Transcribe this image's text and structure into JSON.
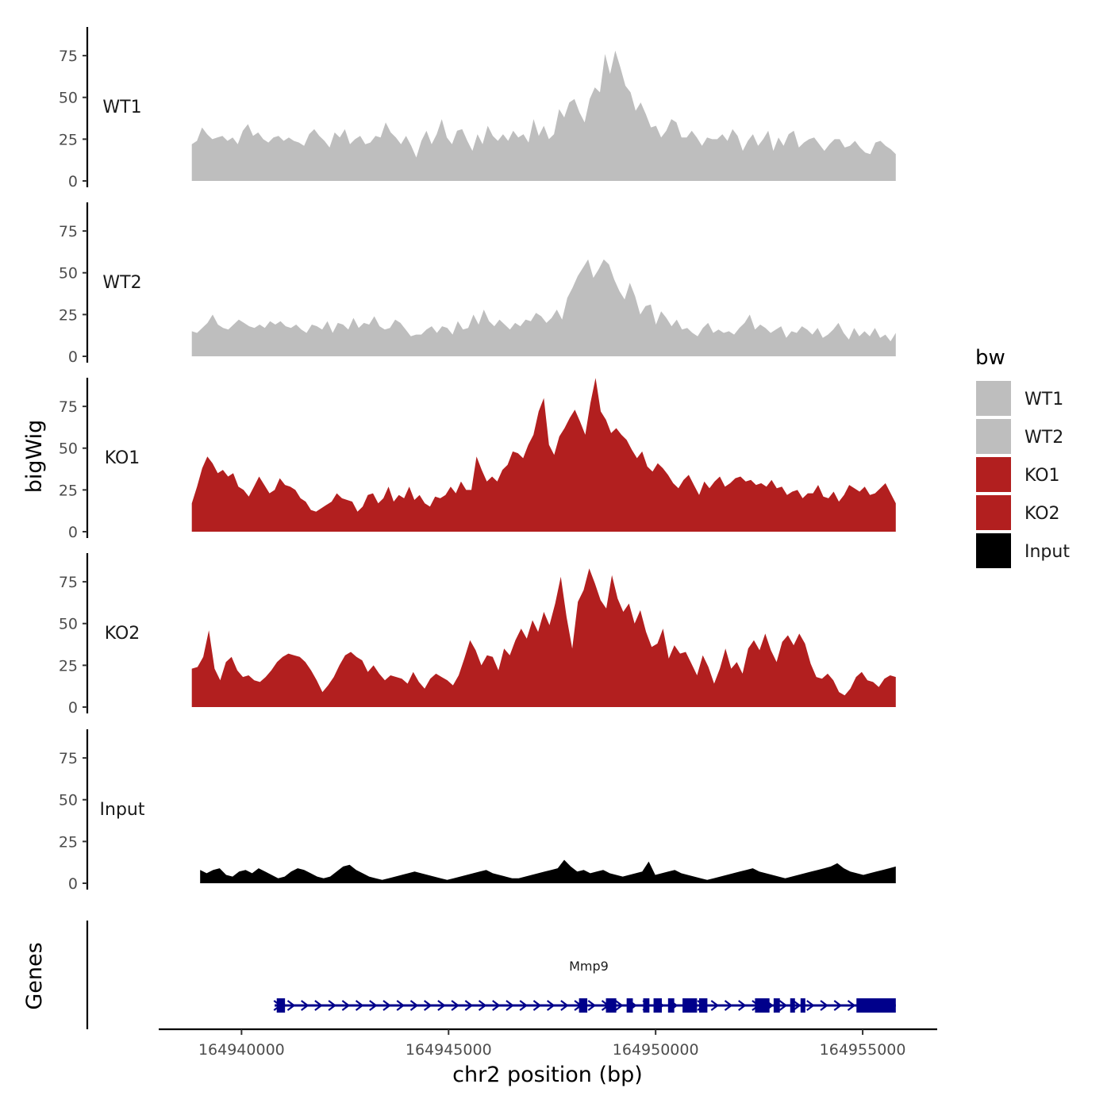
{
  "chart_data": {
    "type": "area",
    "description_title": "",
    "ylabel": "bigWig",
    "genes_label": "Genes",
    "xlabel": "chr2 position (bp)",
    "xlim": [
      164938000,
      164955800
    ],
    "ylim": [
      0,
      95
    ],
    "yticks": [
      0,
      25,
      50,
      75
    ],
    "xticks": [
      164940000,
      164945000,
      164950000,
      164955000
    ],
    "xtick_labels": [
      "164940000",
      "164945000",
      "164950000",
      "164955000"
    ],
    "ytick_labels": [
      "0",
      "25",
      "50",
      "75"
    ],
    "legend": {
      "title": "bw",
      "position": "right",
      "entries": [
        {
          "label": "WT1",
          "color": "#bebebe"
        },
        {
          "label": "WT2",
          "color": "#bebebe"
        },
        {
          "label": "KO1",
          "color": "#b21f1f"
        },
        {
          "label": "KO2",
          "color": "#b21f1f"
        },
        {
          "label": "Input",
          "color": "#000000"
        }
      ]
    },
    "series": [
      {
        "name": "WT1",
        "color": "#bebebe",
        "x_start": 164938800,
        "x_end": 164955800,
        "values": [
          22,
          24,
          32,
          28,
          25,
          26,
          27,
          24,
          26,
          22,
          30,
          34,
          27,
          29,
          25,
          23,
          26,
          27,
          24,
          26,
          24,
          23,
          21,
          28,
          31,
          27,
          24,
          20,
          29,
          26,
          31,
          22,
          25,
          27,
          22,
          23,
          27,
          26,
          35,
          29,
          26,
          22,
          27,
          21,
          14,
          24,
          30,
          22,
          28,
          37,
          26,
          22,
          30,
          31,
          24,
          18,
          28,
          22,
          33,
          27,
          24,
          28,
          24,
          30,
          26,
          28,
          23,
          37,
          27,
          33,
          25,
          28,
          43,
          38,
          47,
          49,
          41,
          35,
          49,
          56,
          53,
          76,
          64,
          78,
          68,
          57,
          53,
          42,
          47,
          40,
          32,
          33,
          26,
          30,
          37,
          35,
          26,
          26,
          30,
          26,
          21,
          26,
          25,
          25,
          28,
          24,
          31,
          27,
          18,
          24,
          28,
          21,
          25,
          30,
          18,
          26,
          21,
          28,
          30,
          20,
          23,
          25,
          26,
          22,
          18,
          22,
          25,
          25,
          20,
          21,
          24,
          20,
          17,
          16,
          23,
          24,
          21,
          19,
          16
        ]
      },
      {
        "name": "WT2",
        "color": "#bebebe",
        "x_start": 164938800,
        "x_end": 164955800,
        "values": [
          15,
          14,
          17,
          20,
          25,
          19,
          17,
          16,
          19,
          22,
          20,
          18,
          17,
          19,
          17,
          21,
          19,
          21,
          18,
          17,
          19,
          16,
          14,
          19,
          18,
          16,
          21,
          14,
          20,
          19,
          16,
          23,
          17,
          20,
          19,
          24,
          18,
          16,
          17,
          22,
          20,
          16,
          12,
          13,
          13,
          16,
          18,
          14,
          18,
          17,
          13,
          21,
          16,
          17,
          25,
          19,
          28,
          21,
          18,
          22,
          19,
          16,
          20,
          18,
          22,
          21,
          26,
          24,
          20,
          23,
          28,
          22,
          35,
          41,
          48,
          53,
          58,
          47,
          52,
          58,
          55,
          46,
          39,
          34,
          44,
          36,
          25,
          30,
          31,
          19,
          27,
          23,
          18,
          22,
          16,
          17,
          14,
          12,
          17,
          20,
          14,
          16,
          14,
          15,
          13,
          17,
          20,
          25,
          16,
          19,
          17,
          14,
          16,
          18,
          11,
          15,
          14,
          18,
          16,
          13,
          17,
          11,
          13,
          16,
          20,
          14,
          10,
          17,
          12,
          15,
          12,
          17,
          11,
          13,
          9,
          14
        ]
      },
      {
        "name": "KO1",
        "color": "#b21f1f",
        "x_start": 164938800,
        "x_end": 164955800,
        "values": [
          17,
          27,
          38,
          45,
          41,
          35,
          37,
          33,
          35,
          27,
          25,
          21,
          27,
          33,
          28,
          23,
          25,
          32,
          28,
          27,
          25,
          20,
          18,
          13,
          12,
          14,
          16,
          18,
          23,
          20,
          19,
          18,
          12,
          15,
          22,
          23,
          17,
          20,
          27,
          18,
          22,
          20,
          27,
          19,
          22,
          17,
          15,
          21,
          20,
          22,
          27,
          23,
          30,
          25,
          25,
          45,
          37,
          30,
          33,
          30,
          37,
          40,
          48,
          47,
          44,
          52,
          58,
          72,
          80,
          52,
          46,
          57,
          62,
          68,
          73,
          66,
          58,
          77,
          92,
          72,
          67,
          59,
          62,
          58,
          55,
          49,
          44,
          48,
          39,
          36,
          41,
          38,
          34,
          29,
          26,
          31,
          34,
          28,
          22,
          30,
          26,
          30,
          33,
          27,
          29,
          32,
          33,
          30,
          31,
          28,
          29,
          27,
          31,
          26,
          27,
          22,
          24,
          25,
          20,
          23,
          23,
          28,
          21,
          20,
          24,
          18,
          22,
          28,
          26,
          24,
          27,
          22,
          23,
          26,
          29,
          23,
          17
        ]
      },
      {
        "name": "KO2",
        "color": "#b21f1f",
        "x_start": 164938800,
        "x_end": 164955800,
        "values": [
          23,
          24,
          30,
          46,
          23,
          16,
          27,
          30,
          22,
          18,
          19,
          16,
          15,
          18,
          22,
          27,
          30,
          32,
          31,
          30,
          27,
          22,
          16,
          9,
          13,
          18,
          25,
          31,
          33,
          30,
          28,
          21,
          25,
          20,
          16,
          19,
          18,
          17,
          14,
          21,
          15,
          11,
          17,
          20,
          18,
          16,
          13,
          19,
          29,
          40,
          34,
          25,
          31,
          30,
          22,
          35,
          31,
          40,
          47,
          41,
          52,
          45,
          57,
          49,
          62,
          78,
          54,
          35,
          63,
          70,
          83,
          74,
          64,
          59,
          79,
          65,
          57,
          62,
          50,
          58,
          45,
          36,
          38,
          47,
          29,
          37,
          32,
          33,
          26,
          19,
          31,
          24,
          14,
          23,
          35,
          23,
          27,
          20,
          35,
          40,
          34,
          44,
          34,
          27,
          39,
          43,
          37,
          44,
          38,
          26,
          18,
          17,
          20,
          16,
          9,
          7,
          11,
          18,
          21,
          16,
          15,
          12,
          17,
          19,
          18
        ]
      }
    ],
    "input_series": {
      "name": "Input",
      "color": "#000000",
      "x_start": 164939000,
      "x_end": 164955800,
      "values": [
        8,
        6,
        8,
        9,
        5,
        4,
        7,
        8,
        6,
        9,
        7,
        5,
        3,
        4,
        7,
        9,
        8,
        6,
        4,
        3,
        4,
        7,
        10,
        11,
        8,
        6,
        4,
        3,
        2,
        3,
        4,
        5,
        6,
        7,
        6,
        5,
        4,
        3,
        2,
        3,
        4,
        5,
        6,
        7,
        8,
        6,
        5,
        4,
        3,
        3,
        4,
        5,
        6,
        7,
        8,
        9,
        14,
        10,
        7,
        8,
        6,
        7,
        8,
        6,
        5,
        4,
        5,
        6,
        7,
        13,
        5,
        6,
        7,
        8,
        6,
        5,
        4,
        3,
        2,
        3,
        4,
        5,
        6,
        7,
        8,
        9,
        7,
        6,
        5,
        4,
        3,
        4,
        5,
        6,
        7,
        8,
        9,
        10,
        12,
        9,
        7,
        6,
        5,
        6,
        7,
        8,
        9,
        10
      ]
    },
    "gene": {
      "name": "Mmp9",
      "color": "#00008b",
      "strand": "+",
      "start": 164940800,
      "end": 164955800,
      "exons": [
        [
          164940850,
          164941050
        ],
        [
          164948150,
          164948350
        ],
        [
          164948800,
          164949050
        ],
        [
          164949300,
          164949450
        ],
        [
          164949700,
          164949850
        ],
        [
          164949950,
          164950150
        ],
        [
          164950300,
          164950450
        ],
        [
          164950650,
          164951000
        ],
        [
          164951050,
          164951250
        ],
        [
          164952400,
          164952750
        ],
        [
          164952850,
          164953000
        ],
        [
          164953250,
          164953350
        ],
        [
          164953500,
          164953600
        ],
        [
          164954850,
          164955800
        ]
      ]
    }
  }
}
